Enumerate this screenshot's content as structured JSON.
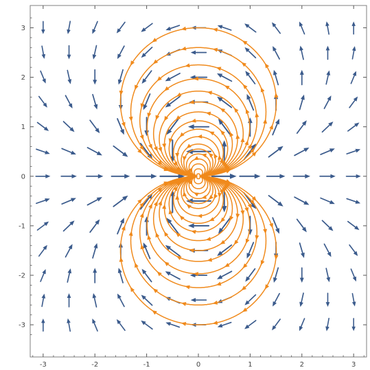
{
  "chart_data": {
    "type": "stream_plot",
    "title": "",
    "xlabel": "",
    "ylabel": "",
    "xlim": [
      -3.25,
      3.25
    ],
    "ylim": [
      -3.65,
      3.45
    ],
    "xticks": [
      -3,
      -2,
      -1,
      0,
      1,
      2,
      3
    ],
    "yticks": [
      -3,
      -2,
      -1,
      0,
      1,
      2,
      3
    ],
    "xtick_labels": [
      "-3",
      "-2",
      "-1",
      "0",
      "1",
      "2",
      "3"
    ],
    "ytick_labels": [
      "-3",
      "-2",
      "-1",
      "0",
      "1",
      "2",
      "3"
    ],
    "field": "dipole: v = (x^2 - y^2, 2xy) / (x^2 + y^2)^2",
    "vector_grid": {
      "x_from": -3,
      "x_to": 3,
      "y_from": -3,
      "y_to": 3,
      "count": 13
    },
    "streamline_seeds": [
      [
        0,
        0.05
      ],
      [
        0,
        0.15
      ],
      [
        0,
        0.25
      ],
      [
        0,
        0.35
      ],
      [
        0,
        0.45
      ],
      [
        0,
        0.55
      ],
      [
        0,
        0.65
      ],
      [
        0,
        0.8
      ],
      [
        0,
        0.95
      ],
      [
        0,
        1.12
      ],
      [
        0,
        1.3
      ],
      [
        0,
        1.5
      ],
      [
        0,
        1.72
      ],
      [
        0,
        1.97
      ],
      [
        0,
        2.25
      ],
      [
        0,
        2.6
      ],
      [
        0,
        3.0
      ],
      [
        0,
        -0.05
      ],
      [
        0,
        -0.15
      ],
      [
        0,
        -0.25
      ],
      [
        0,
        -0.35
      ],
      [
        0,
        -0.45
      ],
      [
        0,
        -0.55
      ],
      [
        0,
        -0.65
      ],
      [
        0,
        -0.8
      ],
      [
        0,
        -0.95
      ],
      [
        0,
        -1.12
      ],
      [
        0,
        -1.3
      ],
      [
        0,
        -1.5
      ],
      [
        0,
        -1.72
      ],
      [
        0,
        -1.97
      ],
      [
        0,
        -2.25
      ],
      [
        0,
        -2.6
      ],
      [
        0,
        -3.0
      ]
    ],
    "grid": false,
    "frame": true,
    "colors": {
      "vectors": "#3B5B8C",
      "streamlines": "#F08A1C",
      "frame": "#7F7F7F",
      "ticks": "#555555"
    }
  }
}
